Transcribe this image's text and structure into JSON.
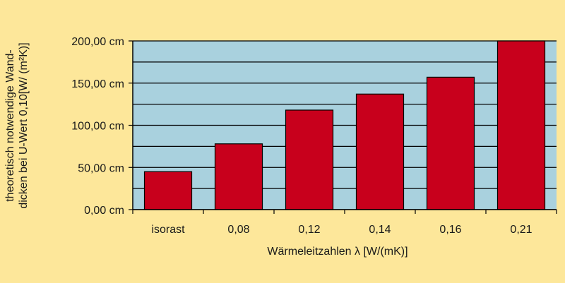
{
  "chart_data": {
    "type": "bar",
    "categories": [
      "isorast",
      "0,08",
      "0,12",
      "0,14",
      "0,16",
      "0,21"
    ],
    "values": [
      45,
      78,
      118,
      137,
      157,
      200
    ],
    "unit": "cm",
    "ylim": [
      0,
      200
    ],
    "yticks": [
      0,
      50,
      100,
      150,
      200
    ],
    "ytick_labels": [
      "0,00 cm",
      "50,00 cm",
      "100,00 cm",
      "150,00 cm",
      "200,00 cm"
    ],
    "xlabel": "Wärmeleitzahlen λ [W/(mK)]",
    "ylabel_lines": [
      "theoretisch notwendige Wand-",
      "dicken bei U-Wert 0,10[W/ (m²K)]"
    ],
    "minor_gridlines_per_major": 2,
    "grid": true,
    "legend": "none",
    "colors": {
      "background": "#fde79a",
      "plot_area": "#a9d1de",
      "bar": "#c8001c",
      "outline": "#000000"
    }
  }
}
